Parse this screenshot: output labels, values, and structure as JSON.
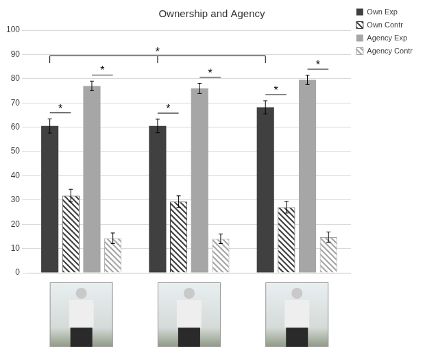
{
  "chart_data": {
    "type": "bar",
    "title": "Ownership and Agency",
    "categories": [
      null,
      null,
      null
    ],
    "series": [
      {
        "name": "Own Exp",
        "color": "#404040",
        "line_style": "solid",
        "values": [
          60.5,
          60.5,
          68.2
        ],
        "errors": [
          2.9,
          2.8,
          2.7
        ]
      },
      {
        "name": "Own Contr",
        "color": "#404040",
        "line_style": "hatched",
        "values": [
          31.8,
          29.3,
          27.0
        ],
        "errors": [
          2.6,
          2.4,
          2.4
        ]
      },
      {
        "name": "Agency Exp",
        "color": "#a6a6a6",
        "line_style": "solid",
        "values": [
          77.0,
          76.0,
          79.5
        ],
        "errors": [
          2.0,
          2.1,
          1.9
        ]
      },
      {
        "name": "Agency Contr",
        "color": "#a6a6a6",
        "line_style": "hatched",
        "values": [
          14.2,
          14.0,
          14.7
        ],
        "errors": [
          2.2,
          2.0,
          2.1
        ]
      }
    ],
    "ylim": [
      0,
      100
    ],
    "yticks": [
      0,
      10,
      20,
      30,
      40,
      50,
      60,
      70,
      80,
      90,
      100
    ],
    "grid": true,
    "legend": "right",
    "tick_labels": "y",
    "significance": [
      {
        "label": "*",
        "series": [
          "Own Exp",
          "Own Contr"
        ],
        "categories": [
          0
        ]
      },
      {
        "label": "*",
        "series": [
          "Agency Exp",
          "Agency Contr"
        ],
        "categories": [
          0
        ]
      },
      {
        "label": "*",
        "series": [
          "Own Exp",
          "Own Contr"
        ],
        "categories": [
          1
        ]
      },
      {
        "label": "*",
        "series": [
          "Agency Exp",
          "Agency Contr"
        ],
        "categories": [
          1
        ]
      },
      {
        "label": "*",
        "series": [
          "Own Exp",
          "Own Contr"
        ],
        "categories": [
          2
        ]
      },
      {
        "label": "*",
        "series": [
          "Agency Exp",
          "Agency Contr"
        ],
        "categories": [
          2
        ]
      },
      {
        "label": "*",
        "series": [
          "Own Exp"
        ],
        "categories": [
          0,
          1,
          2
        ]
      }
    ]
  }
}
